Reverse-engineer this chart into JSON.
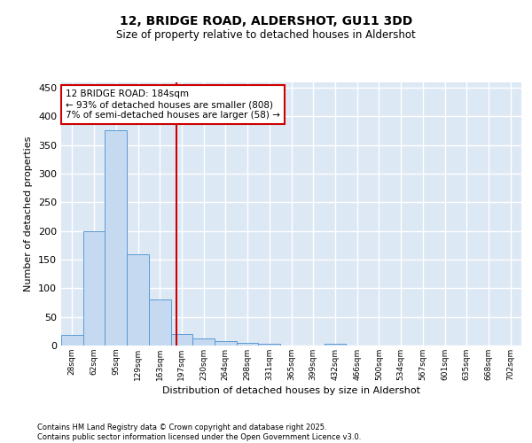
{
  "title": "12, BRIDGE ROAD, ALDERSHOT, GU11 3DD",
  "subtitle": "Size of property relative to detached houses in Aldershot",
  "xlabel": "Distribution of detached houses by size in Aldershot",
  "ylabel": "Number of detached properties",
  "bar_color": "#c5d9f1",
  "bar_edge_color": "#5b9bd5",
  "background_color": "#dde8f5",
  "grid_color": "#ffffff",
  "bin_labels": [
    "28sqm",
    "62sqm",
    "95sqm",
    "129sqm",
    "163sqm",
    "197sqm",
    "230sqm",
    "264sqm",
    "298sqm",
    "331sqm",
    "365sqm",
    "399sqm",
    "432sqm",
    "466sqm",
    "500sqm",
    "534sqm",
    "567sqm",
    "601sqm",
    "635sqm",
    "668sqm",
    "702sqm"
  ],
  "bar_heights": [
    18,
    200,
    375,
    160,
    80,
    20,
    13,
    7,
    5,
    3,
    0,
    0,
    3,
    0,
    0,
    0,
    0,
    0,
    0,
    0,
    0
  ],
  "red_line_x": 4.75,
  "annotation_text": "12 BRIDGE ROAD: 184sqm\n← 93% of detached houses are smaller (808)\n7% of semi-detached houses are larger (58) →",
  "annotation_box_color": "#ffffff",
  "annotation_box_edge": "#cc0000",
  "vline_color": "#cc0000",
  "ylim": [
    0,
    460
  ],
  "yticks": [
    0,
    50,
    100,
    150,
    200,
    250,
    300,
    350,
    400,
    450
  ],
  "footer_line1": "Contains HM Land Registry data © Crown copyright and database right 2025.",
  "footer_line2": "Contains public sector information licensed under the Open Government Licence v3.0."
}
